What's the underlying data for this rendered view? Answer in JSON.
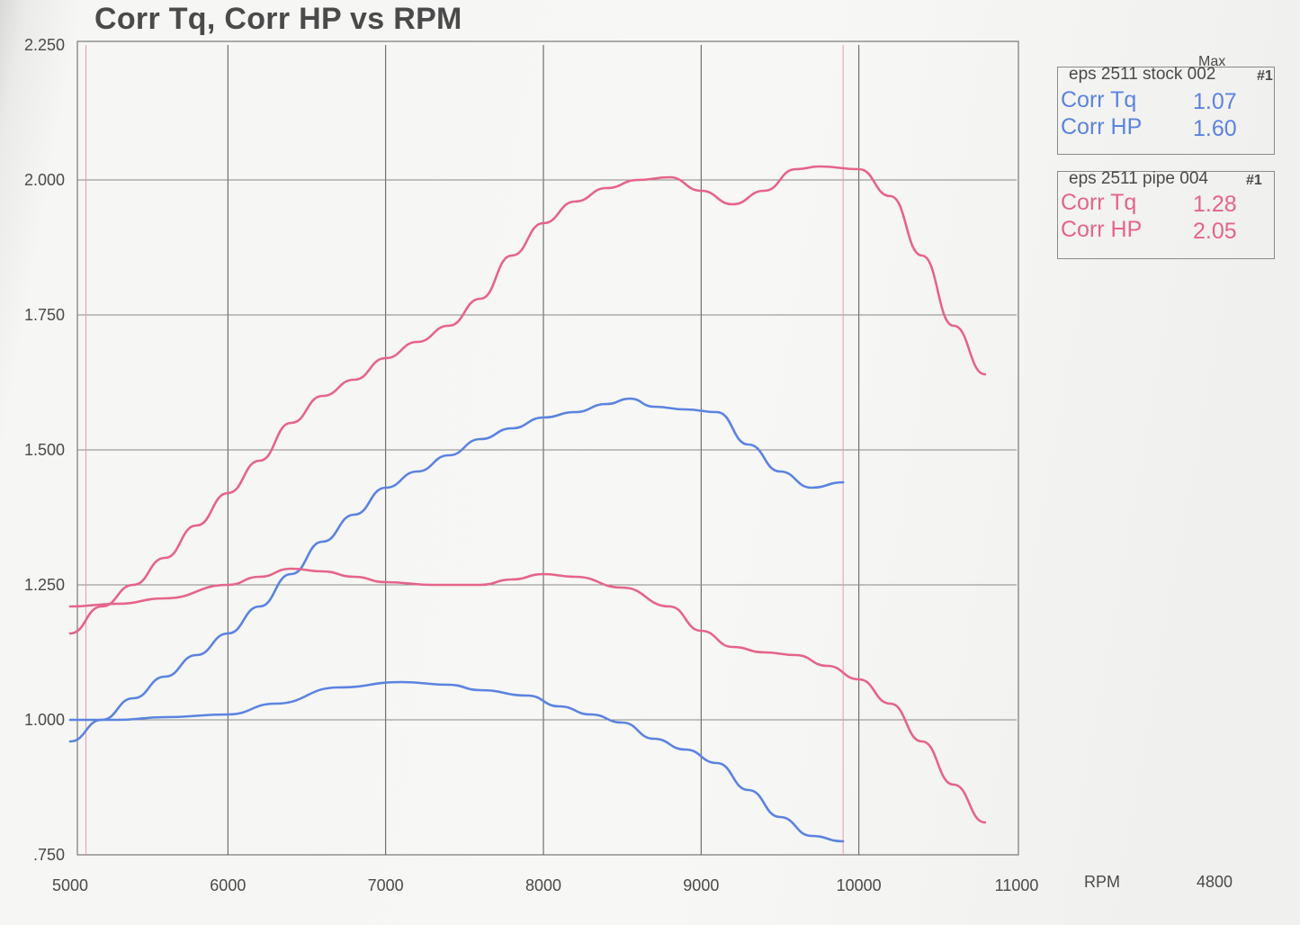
{
  "chart_data": {
    "type": "line",
    "title": "Corr Tq, Corr HP vs RPM",
    "xlabel": "RPM",
    "x_extra_label": "4800",
    "ylabel": "",
    "xlim": [
      5000,
      11000
    ],
    "ylim": [
      0.75,
      2.25
    ],
    "x_ticks": [
      "5000",
      "6000",
      "7000",
      "8000",
      "9000",
      "10000",
      "11000"
    ],
    "y_ticks": [
      "2.250",
      "2.000",
      "1.750",
      "1.500",
      "1.250",
      "1.000",
      ".750"
    ],
    "max_label": "Max",
    "cursor_rpm": [
      5100,
      9900
    ],
    "legends": [
      {
        "header": "eps 2511 stock 002",
        "run": "#1",
        "color": "#5b83e0",
        "entries": [
          {
            "name": "Corr Tq",
            "max": "1.07"
          },
          {
            "name": "Corr HP",
            "max": "1.60"
          }
        ]
      },
      {
        "header": "eps 2511 pipe 004",
        "run": "#1",
        "color": "#e5648a",
        "entries": [
          {
            "name": "Corr Tq",
            "max": "1.28"
          },
          {
            "name": "Corr HP",
            "max": "2.05"
          }
        ]
      }
    ],
    "series": [
      {
        "name": "stock Corr HP",
        "color": "#5b83e0",
        "points": [
          [
            5000,
            0.96
          ],
          [
            5200,
            1.0
          ],
          [
            5400,
            1.04
          ],
          [
            5600,
            1.08
          ],
          [
            5800,
            1.12
          ],
          [
            6000,
            1.16
          ],
          [
            6200,
            1.21
          ],
          [
            6400,
            1.27
          ],
          [
            6600,
            1.33
          ],
          [
            6800,
            1.38
          ],
          [
            7000,
            1.43
          ],
          [
            7200,
            1.46
          ],
          [
            7400,
            1.49
          ],
          [
            7600,
            1.52
          ],
          [
            7800,
            1.54
          ],
          [
            8000,
            1.56
          ],
          [
            8200,
            1.57
          ],
          [
            8400,
            1.585
          ],
          [
            8550,
            1.595
          ],
          [
            8700,
            1.58
          ],
          [
            8900,
            1.575
          ],
          [
            9100,
            1.57
          ],
          [
            9300,
            1.51
          ],
          [
            9500,
            1.46
          ],
          [
            9700,
            1.43
          ],
          [
            9900,
            1.44
          ]
        ]
      },
      {
        "name": "stock Corr Tq",
        "color": "#5b83e0",
        "points": [
          [
            5000,
            1.0
          ],
          [
            5300,
            1.0
          ],
          [
            5600,
            1.005
          ],
          [
            6000,
            1.01
          ],
          [
            6300,
            1.03
          ],
          [
            6700,
            1.06
          ],
          [
            7100,
            1.07
          ],
          [
            7400,
            1.065
          ],
          [
            7600,
            1.055
          ],
          [
            7900,
            1.045
          ],
          [
            8100,
            1.025
          ],
          [
            8300,
            1.01
          ],
          [
            8500,
            0.995
          ],
          [
            8700,
            0.965
          ],
          [
            8900,
            0.945
          ],
          [
            9100,
            0.92
          ],
          [
            9300,
            0.87
          ],
          [
            9500,
            0.82
          ],
          [
            9700,
            0.785
          ],
          [
            9900,
            0.775
          ]
        ]
      },
      {
        "name": "pipe Corr HP",
        "color": "#e5648a",
        "points": [
          [
            5000,
            1.16
          ],
          [
            5200,
            1.21
          ],
          [
            5400,
            1.25
          ],
          [
            5600,
            1.3
          ],
          [
            5800,
            1.36
          ],
          [
            6000,
            1.42
          ],
          [
            6200,
            1.48
          ],
          [
            6400,
            1.55
          ],
          [
            6600,
            1.6
          ],
          [
            6800,
            1.63
          ],
          [
            7000,
            1.67
          ],
          [
            7200,
            1.7
          ],
          [
            7400,
            1.73
          ],
          [
            7600,
            1.78
          ],
          [
            7800,
            1.86
          ],
          [
            8000,
            1.92
          ],
          [
            8200,
            1.96
          ],
          [
            8400,
            1.985
          ],
          [
            8600,
            2.0
          ],
          [
            8800,
            2.005
          ],
          [
            9000,
            1.98
          ],
          [
            9200,
            1.955
          ],
          [
            9400,
            1.98
          ],
          [
            9600,
            2.02
          ],
          [
            9750,
            2.025
          ],
          [
            10000,
            2.02
          ],
          [
            10200,
            1.97
          ],
          [
            10400,
            1.86
          ],
          [
            10600,
            1.73
          ],
          [
            10800,
            1.64
          ]
        ]
      },
      {
        "name": "pipe Corr Tq",
        "color": "#e5648a",
        "points": [
          [
            5000,
            1.21
          ],
          [
            5300,
            1.215
          ],
          [
            5600,
            1.225
          ],
          [
            6000,
            1.25
          ],
          [
            6200,
            1.265
          ],
          [
            6400,
            1.28
          ],
          [
            6600,
            1.275
          ],
          [
            6800,
            1.265
          ],
          [
            7000,
            1.255
          ],
          [
            7300,
            1.25
          ],
          [
            7600,
            1.25
          ],
          [
            7800,
            1.26
          ],
          [
            8000,
            1.27
          ],
          [
            8200,
            1.265
          ],
          [
            8500,
            1.245
          ],
          [
            8800,
            1.21
          ],
          [
            9000,
            1.165
          ],
          [
            9200,
            1.135
          ],
          [
            9400,
            1.125
          ],
          [
            9600,
            1.12
          ],
          [
            9800,
            1.1
          ],
          [
            10000,
            1.075
          ],
          [
            10200,
            1.03
          ],
          [
            10400,
            0.96
          ],
          [
            10600,
            0.88
          ],
          [
            10800,
            0.81
          ]
        ]
      }
    ]
  }
}
